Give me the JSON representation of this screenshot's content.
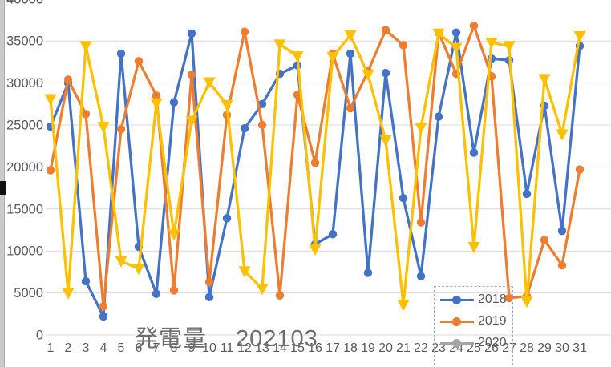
{
  "chart": {
    "title_main": "発電量",
    "title_sub": "202103",
    "legend": {
      "selected": true,
      "entries": [
        {
          "label": "2018",
          "color": "#4472C4"
        },
        {
          "label": "2019",
          "color": "#ED7D31"
        },
        {
          "label": "2020",
          "color": "#A5A5A5"
        }
      ]
    }
  },
  "colors": {
    "blue": "#4472C4",
    "orange": "#ED7D31",
    "yellow": "#FFC000",
    "gray": "#A5A5A5",
    "gridline": "#D9D9D9",
    "axis_text": "#595959",
    "title_text": "#6d6d6d",
    "selection_border": "#8faadc"
  },
  "chart_data": {
    "type": "line",
    "title": "発電量 202103",
    "x": [
      1,
      2,
      3,
      4,
      5,
      6,
      7,
      8,
      9,
      10,
      11,
      12,
      13,
      14,
      15,
      16,
      17,
      18,
      19,
      20,
      21,
      22,
      23,
      24,
      25,
      26,
      27,
      28,
      29,
      30,
      31
    ],
    "y_ticks": [
      0,
      5000,
      10000,
      15000,
      20000,
      25000,
      30000,
      35000,
      40000
    ],
    "ylim": [
      0,
      40000
    ],
    "grid": true,
    "legend_position": "bottom-right-overlay",
    "series": [
      {
        "name": "2018",
        "color": "#4472C4",
        "marker": "circle",
        "legend_visible": true,
        "values": [
          24800,
          30000,
          6400,
          2200,
          33500,
          10500,
          4900,
          27700,
          35900,
          4500,
          13900,
          24600,
          27500,
          31100,
          32100,
          10800,
          12000,
          33500,
          7400,
          31200,
          16300,
          7000,
          26000,
          36000,
          21700,
          32900,
          32700,
          16800,
          27300,
          12400,
          34400
        ]
      },
      {
        "name": "2019",
        "color": "#ED7D31",
        "marker": "circle",
        "legend_visible": true,
        "values": [
          19600,
          30400,
          26300,
          3400,
          24500,
          32600,
          28500,
          5300,
          31000,
          6300,
          26200,
          36100,
          25000,
          4700,
          28600,
          20500,
          33500,
          27000,
          31400,
          36300,
          34500,
          13400,
          36000,
          31100,
          36800,
          30800,
          4400,
          4600,
          11300,
          8300,
          19700
        ]
      },
      {
        "name": "",
        "color": "#FFC000",
        "marker": "triangle-down",
        "legend_visible": false,
        "values": [
          28100,
          5000,
          34400,
          24800,
          8800,
          7900,
          27600,
          12000,
          25500,
          30100,
          27400,
          7600,
          5500,
          34600,
          33200,
          10200,
          33100,
          35700,
          31000,
          23200,
          3600,
          24700,
          35900,
          34200,
          10500,
          34800,
          34400,
          4000,
          30500,
          23900,
          35600
        ]
      },
      {
        "name": "2020",
        "color": "#A5A5A5",
        "marker": "circle",
        "legend_visible": true,
        "legend_only": true,
        "values": []
      }
    ]
  }
}
